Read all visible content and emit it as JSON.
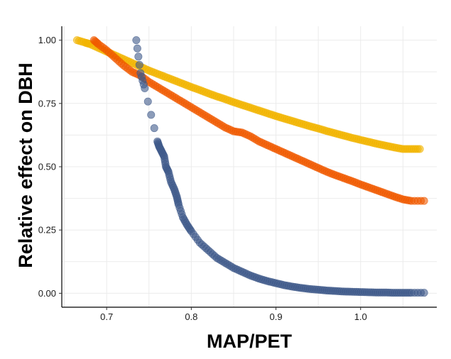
{
  "chart_data": {
    "type": "scatter",
    "title": "",
    "xlabel": "MAP/PET",
    "ylabel": "Relative effect on DBH",
    "xlim": [
      0.647,
      1.09
    ],
    "ylim": [
      -0.055,
      1.055
    ],
    "xticks": [
      0.7,
      0.8,
      0.9,
      1.0
    ],
    "xtick_labels": [
      "0.7",
      "0.8",
      "0.9",
      "1.0"
    ],
    "yticks": [
      0.0,
      0.25,
      0.5,
      0.75,
      1.0
    ],
    "ytick_labels": [
      "0.00",
      "0.25",
      "0.50",
      "0.75",
      "1.00"
    ],
    "grid": true,
    "legend": "none",
    "series": [
      {
        "color": "#F2B400",
        "points": [
          [
            0.665,
            1.0
          ],
          [
            0.675,
            0.99
          ],
          [
            0.68,
            0.985
          ],
          [
            0.69,
            0.97
          ],
          [
            0.7,
            0.955
          ],
          [
            0.71,
            0.94
          ],
          [
            0.72,
            0.925
          ],
          [
            0.73,
            0.91
          ],
          [
            0.74,
            0.895
          ],
          [
            0.75,
            0.88
          ],
          [
            0.76,
            0.867
          ],
          [
            0.77,
            0.854
          ],
          [
            0.78,
            0.841
          ],
          [
            0.79,
            0.828
          ],
          [
            0.8,
            0.815
          ],
          [
            0.81,
            0.803
          ],
          [
            0.82,
            0.79
          ],
          [
            0.83,
            0.778
          ],
          [
            0.84,
            0.767
          ],
          [
            0.85,
            0.755
          ],
          [
            0.86,
            0.744
          ],
          [
            0.87,
            0.733
          ],
          [
            0.88,
            0.722
          ],
          [
            0.89,
            0.711
          ],
          [
            0.9,
            0.7
          ],
          [
            0.91,
            0.69
          ],
          [
            0.92,
            0.68
          ],
          [
            0.93,
            0.67
          ],
          [
            0.94,
            0.66
          ],
          [
            0.95,
            0.651
          ],
          [
            0.96,
            0.641
          ],
          [
            0.97,
            0.632
          ],
          [
            0.98,
            0.623
          ],
          [
            0.99,
            0.614
          ],
          [
            1.0,
            0.606
          ],
          [
            1.01,
            0.598
          ],
          [
            1.02,
            0.59
          ],
          [
            1.03,
            0.583
          ],
          [
            1.04,
            0.576
          ],
          [
            1.05,
            0.57
          ],
          [
            1.06,
            0.57
          ],
          [
            1.07,
            0.57
          ]
        ]
      },
      {
        "color": "#F05A00",
        "points": [
          [
            0.685,
            1.0
          ],
          [
            0.69,
            0.985
          ],
          [
            0.7,
            0.96
          ],
          [
            0.71,
            0.93
          ],
          [
            0.72,
            0.9
          ],
          [
            0.73,
            0.875
          ],
          [
            0.74,
            0.86
          ],
          [
            0.75,
            0.835
          ],
          [
            0.76,
            0.815
          ],
          [
            0.77,
            0.795
          ],
          [
            0.78,
            0.775
          ],
          [
            0.79,
            0.755
          ],
          [
            0.8,
            0.735
          ],
          [
            0.81,
            0.715
          ],
          [
            0.82,
            0.695
          ],
          [
            0.83,
            0.675
          ],
          [
            0.84,
            0.655
          ],
          [
            0.85,
            0.64
          ],
          [
            0.86,
            0.635
          ],
          [
            0.87,
            0.62
          ],
          [
            0.88,
            0.6
          ],
          [
            0.89,
            0.585
          ],
          [
            0.9,
            0.57
          ],
          [
            0.91,
            0.555
          ],
          [
            0.92,
            0.54
          ],
          [
            0.93,
            0.525
          ],
          [
            0.94,
            0.51
          ],
          [
            0.95,
            0.495
          ],
          [
            0.96,
            0.48
          ],
          [
            0.97,
            0.467
          ],
          [
            0.98,
            0.455
          ],
          [
            0.99,
            0.443
          ],
          [
            1.0,
            0.43
          ],
          [
            1.01,
            0.418
          ],
          [
            1.02,
            0.406
          ],
          [
            1.03,
            0.394
          ],
          [
            1.04,
            0.382
          ],
          [
            1.05,
            0.371
          ],
          [
            1.06,
            0.365
          ],
          [
            1.075,
            0.365
          ]
        ]
      },
      {
        "color": "#3F5A8A",
        "points": [
          [
            0.735,
            1.0
          ],
          [
            0.74,
            0.87
          ],
          [
            0.745,
            0.81
          ],
          [
            0.76,
            0.6
          ],
          [
            0.762,
            0.58
          ],
          [
            0.765,
            0.56
          ],
          [
            0.768,
            0.54
          ],
          [
            0.77,
            0.5
          ],
          [
            0.773,
            0.48
          ],
          [
            0.776,
            0.44
          ],
          [
            0.78,
            0.41
          ],
          [
            0.783,
            0.38
          ],
          [
            0.785,
            0.35
          ],
          [
            0.79,
            0.3
          ],
          [
            0.795,
            0.27
          ],
          [
            0.8,
            0.245
          ],
          [
            0.81,
            0.2
          ],
          [
            0.82,
            0.17
          ],
          [
            0.83,
            0.14
          ],
          [
            0.84,
            0.12
          ],
          [
            0.85,
            0.1
          ],
          [
            0.86,
            0.085
          ],
          [
            0.87,
            0.07
          ],
          [
            0.88,
            0.058
          ],
          [
            0.89,
            0.048
          ],
          [
            0.9,
            0.04
          ],
          [
            0.91,
            0.032
          ],
          [
            0.92,
            0.026
          ],
          [
            0.93,
            0.021
          ],
          [
            0.94,
            0.017
          ],
          [
            0.95,
            0.014
          ],
          [
            0.96,
            0.011
          ],
          [
            0.97,
            0.009
          ],
          [
            0.98,
            0.007
          ],
          [
            0.99,
            0.006
          ],
          [
            1.0,
            0.005
          ],
          [
            1.01,
            0.004
          ],
          [
            1.02,
            0.003
          ],
          [
            1.03,
            0.003
          ],
          [
            1.04,
            0.002
          ],
          [
            1.05,
            0.002
          ],
          [
            1.06,
            0.002
          ],
          [
            1.075,
            0.002
          ]
        ]
      }
    ]
  }
}
